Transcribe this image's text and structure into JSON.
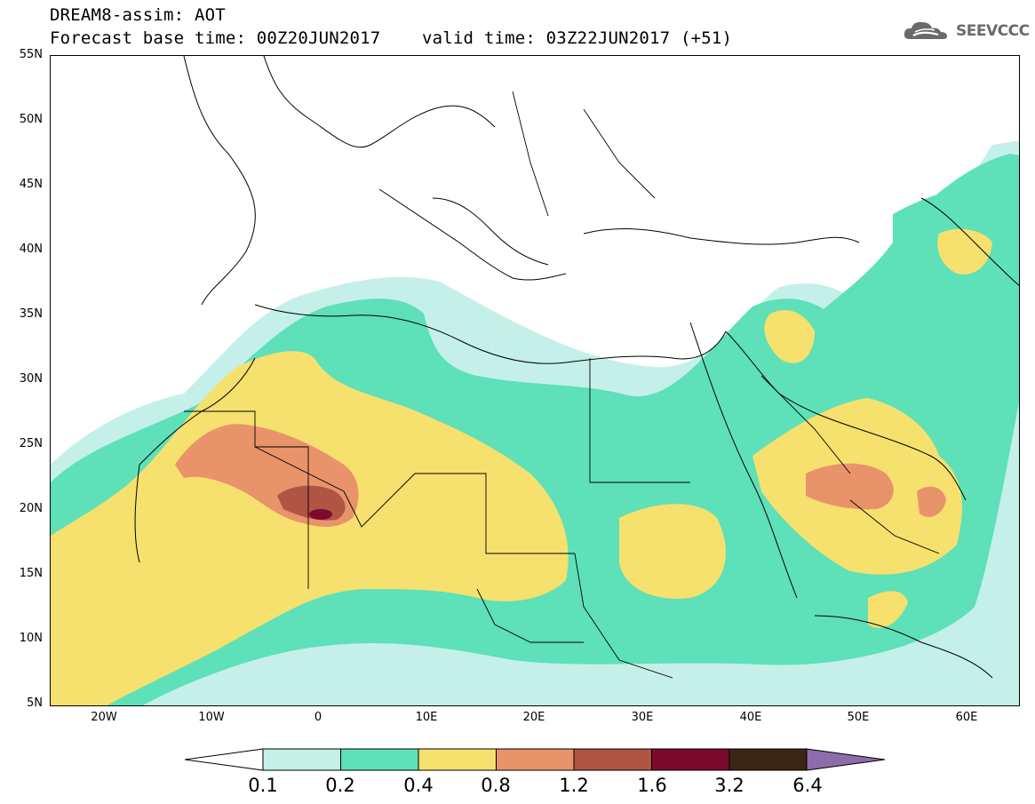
{
  "header": {
    "line1": "DREAM8-assim: AOT",
    "line2": "Forecast base time: 00Z20JUN2017    valid time: 03Z22JUN2017 (+51)"
  },
  "logo": {
    "text": "SEEVCCC",
    "icon": "cloud-icon"
  },
  "map": {
    "lat_labels": [
      "55N",
      "50N",
      "45N",
      "40N",
      "35N",
      "30N",
      "25N",
      "20N",
      "15N",
      "10N",
      "5N"
    ],
    "lon_labels": [
      "20W",
      "10W",
      "0",
      "10E",
      "20E",
      "30E",
      "40E",
      "50E",
      "60E"
    ]
  },
  "legend": {
    "labels": [
      "0.1",
      "0.2",
      "0.4",
      "0.8",
      "1.2",
      "1.6",
      "3.2",
      "6.4"
    ],
    "colors": [
      "#c4f0e9",
      "#5ee0b8",
      "#f6e06e",
      "#e8936a",
      "#b05444",
      "#7b0a2c",
      "#3a2616",
      "#8e6bab"
    ]
  }
}
